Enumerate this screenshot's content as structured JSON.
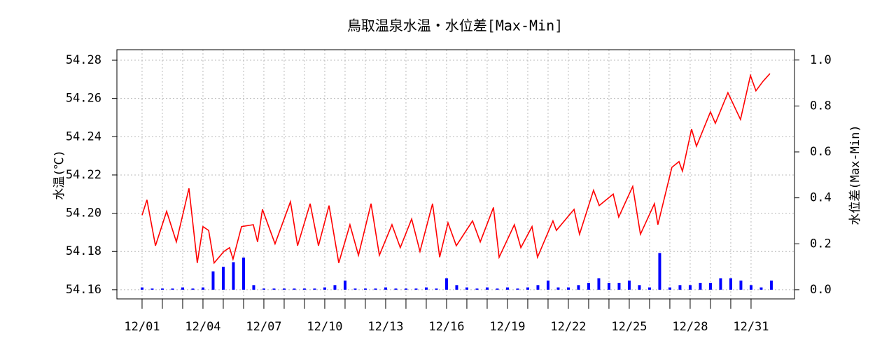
{
  "chart_data": {
    "type": "line",
    "title": "鳥取温泉水温・水位差[Max-Min]",
    "ylabel": "水温(℃)",
    "y2label": "水位差(Max-Min)",
    "xlim": [
      -1.24,
      32.14
    ],
    "xticks": [
      {
        "value": 0,
        "label": "12/01"
      },
      {
        "value": 3,
        "label": "12/04"
      },
      {
        "value": 6,
        "label": "12/07"
      },
      {
        "value": 9,
        "label": "12/10"
      },
      {
        "value": 12,
        "label": "12/13"
      },
      {
        "value": 15,
        "label": "12/16"
      },
      {
        "value": 18,
        "label": "12/19"
      },
      {
        "value": 21,
        "label": "12/22"
      },
      {
        "value": 24,
        "label": "12/25"
      },
      {
        "value": 27,
        "label": "12/28"
      },
      {
        "value": 30,
        "label": "12/31"
      }
    ],
    "xminorticks": [
      1,
      2,
      4,
      5,
      7,
      8,
      10,
      11,
      13,
      14,
      16,
      17,
      19,
      20,
      22,
      23,
      25,
      26,
      28,
      29
    ],
    "ylim": [
      54.1552,
      54.2855
    ],
    "yticks": [
      54.16,
      54.18,
      {
        "value": 54.2,
        "label": "54.20"
      },
      54.22,
      54.24,
      54.26,
      54.28
    ],
    "y2lim": [
      -0.04,
      1.045
    ],
    "y2ticks": [
      {
        "value": 0,
        "label": "0.0"
      },
      {
        "value": 0.2,
        "label": "0.2"
      },
      {
        "value": 0.4,
        "label": "0.4"
      },
      {
        "value": 0.6,
        "label": "0.6"
      },
      {
        "value": 0.8,
        "label": "0.8"
      },
      {
        "value": 1,
        "label": "1.0"
      }
    ],
    "grid": true,
    "series": [
      {
        "color": "#ff0000",
        "x": [
          0,
          0.24,
          0.66,
          1.21,
          1.69,
          2.31,
          2.72,
          3.0,
          3.28,
          3.55,
          4.03,
          4.31,
          4.48,
          4.9,
          5.48,
          5.69,
          5.93,
          6.55,
          7.31,
          7.66,
          8.28,
          8.69,
          9.21,
          9.69,
          10.24,
          10.66,
          11.28,
          11.69,
          12.31,
          12.72,
          13.28,
          13.69,
          14.31,
          14.66,
          15.07,
          15.48,
          16.28,
          16.66,
          17.31,
          17.59,
          18.34,
          18.66,
          19.21,
          19.48,
          20.24,
          20.41,
          21.28,
          21.55,
          22.24,
          22.52,
          23.21,
          23.48,
          24.17,
          24.55,
          25.24,
          25.41,
          26.1,
          26.45,
          26.62,
          27.07,
          27.31,
          28.0,
          28.24,
          28.86,
          29.48,
          29.97,
          30.24,
          30.59,
          30.93
        ],
        "values": [
          54.199,
          54.207,
          54.183,
          54.201,
          54.185,
          54.213,
          54.174,
          54.193,
          54.191,
          54.174,
          54.18,
          54.182,
          54.176,
          54.193,
          54.194,
          54.185,
          54.202,
          54.184,
          54.206,
          54.183,
          54.205,
          54.183,
          54.204,
          54.174,
          54.194,
          54.178,
          54.205,
          54.178,
          54.194,
          54.182,
          54.197,
          54.18,
          54.205,
          54.177,
          54.195,
          54.183,
          54.196,
          54.185,
          54.203,
          54.177,
          54.194,
          54.182,
          54.193,
          54.177,
          54.196,
          54.191,
          54.202,
          54.189,
          54.212,
          54.204,
          54.21,
          54.198,
          54.214,
          54.189,
          54.205,
          54.194,
          54.224,
          54.227,
          54.222,
          54.244,
          54.235,
          54.253,
          54.247,
          54.263,
          54.249,
          54.272,
          54.264,
          54.269,
          54.273
        ]
      },
      {
        "color": "#0000ff",
        "axis": "y2",
        "x": [
          0,
          0.5,
          1,
          1.5,
          2,
          2.5,
          3,
          3.5,
          4,
          4.5,
          5,
          5.5,
          6,
          6.5,
          7,
          7.5,
          8,
          8.5,
          9,
          9.5,
          10,
          10.5,
          11,
          11.5,
          12,
          12.5,
          13,
          13.5,
          14,
          14.5,
          15,
          15.5,
          16,
          16.5,
          17,
          17.5,
          18,
          18.5,
          19,
          19.5,
          20,
          20.5,
          21,
          21.5,
          22,
          22.5,
          23,
          23.5,
          24,
          24.5,
          25,
          25.5,
          26,
          26.5,
          27,
          27.5,
          28,
          28.5,
          29,
          29.5,
          30,
          30.5,
          31
        ],
        "values": [
          0.01,
          0.005,
          0.005,
          0.005,
          0.01,
          0.005,
          0.01,
          0.08,
          0.1,
          0.12,
          0.14,
          0.02,
          0.005,
          0.005,
          0.005,
          0.005,
          0.005,
          0.005,
          0.01,
          0.02,
          0.04,
          0.005,
          0.005,
          0.005,
          0.01,
          0.005,
          0.005,
          0.005,
          0.01,
          0.005,
          0.05,
          0.02,
          0.01,
          0.005,
          0.01,
          0.005,
          0.01,
          0.005,
          0.01,
          0.02,
          0.04,
          0.01,
          0.01,
          0.02,
          0.03,
          0.05,
          0.03,
          0.03,
          0.04,
          0.02,
          0.01,
          0.16,
          0.01,
          0.02,
          0.02,
          0.03,
          0.03,
          0.05,
          0.05,
          0.04,
          0.02,
          0.01,
          0.04
        ]
      }
    ]
  }
}
